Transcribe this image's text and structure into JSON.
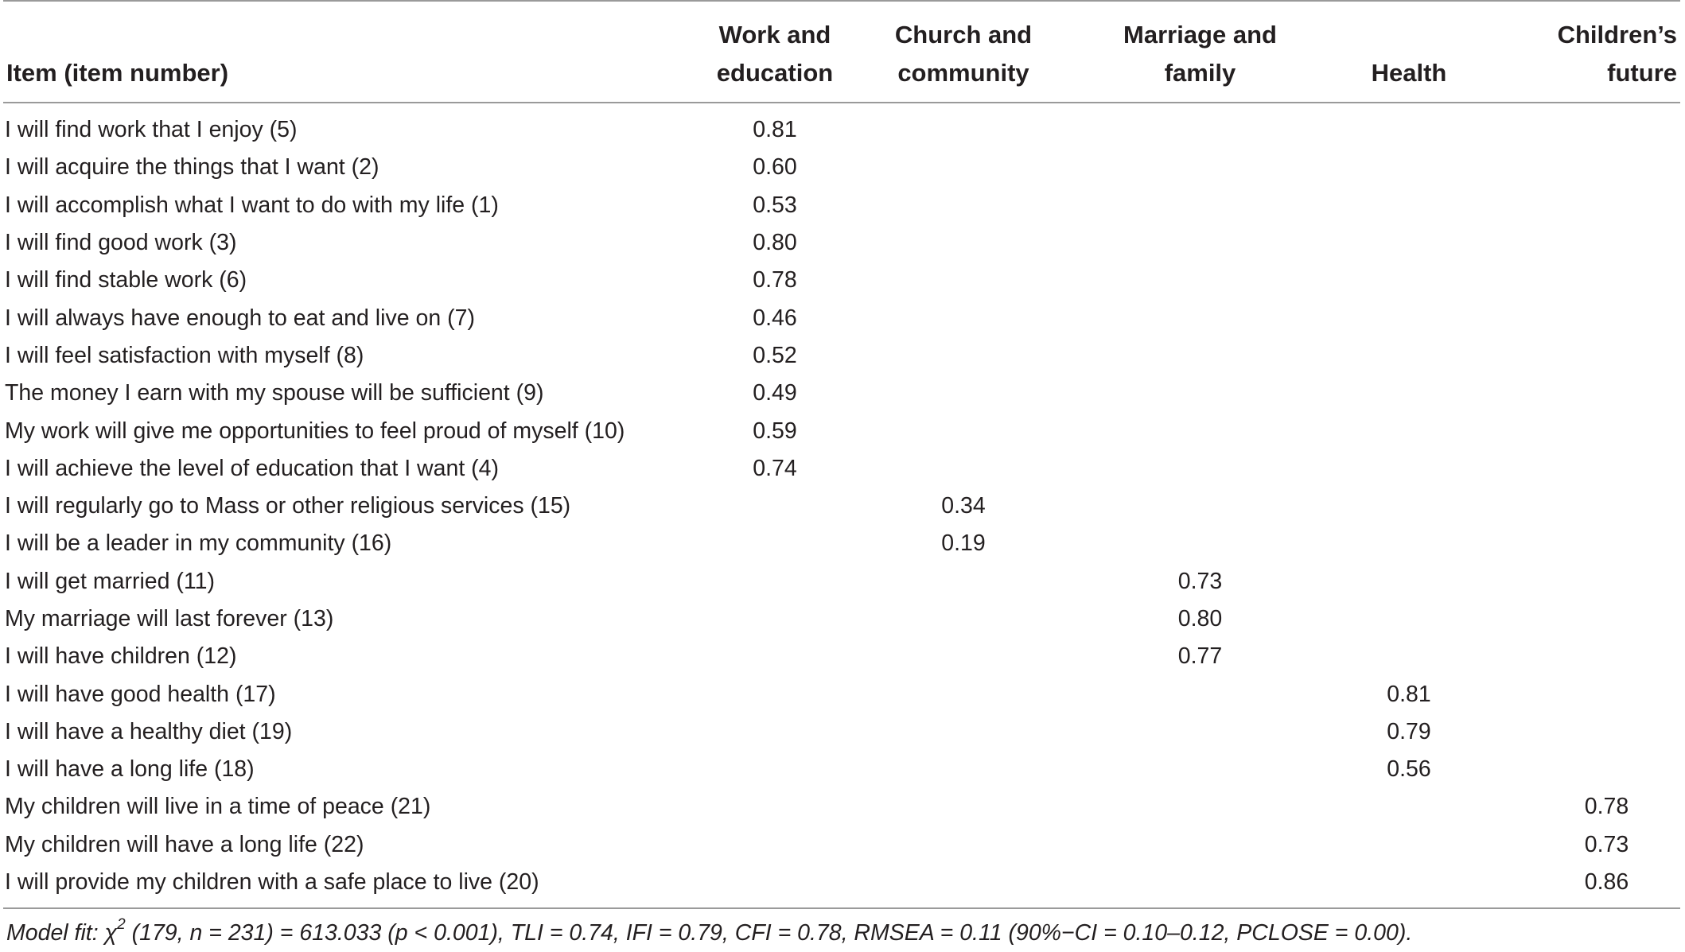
{
  "table": {
    "header": {
      "item": "Item (item number)",
      "columns": [
        {
          "line1": "Work and",
          "line2": "education"
        },
        {
          "line1": "Church and",
          "line2": "community"
        },
        {
          "line1": "Marriage and",
          "line2": "family"
        },
        {
          "line1": "",
          "line2": "Health"
        },
        {
          "line1": "Children’s",
          "line2": "future"
        }
      ]
    },
    "rows": [
      {
        "item": "I will find work that I enjoy (5)",
        "values": [
          "0.81",
          "",
          "",
          "",
          ""
        ]
      },
      {
        "item": "I will acquire the things that I want (2)",
        "values": [
          "0.60",
          "",
          "",
          "",
          ""
        ]
      },
      {
        "item": "I will accomplish what I want to do with my life (1)",
        "values": [
          "0.53",
          "",
          "",
          "",
          ""
        ]
      },
      {
        "item": "I will find good work (3)",
        "values": [
          "0.80",
          "",
          "",
          "",
          ""
        ]
      },
      {
        "item": "I will find stable work (6)",
        "values": [
          "0.78",
          "",
          "",
          "",
          ""
        ]
      },
      {
        "item": "I will always have enough to eat and live on (7)",
        "values": [
          "0.46",
          "",
          "",
          "",
          ""
        ]
      },
      {
        "item": "I will feel satisfaction with myself (8)",
        "values": [
          "0.52",
          "",
          "",
          "",
          ""
        ]
      },
      {
        "item": "The money I earn with my spouse will be sufficient (9)",
        "values": [
          "0.49",
          "",
          "",
          "",
          ""
        ]
      },
      {
        "item": "My work will give me opportunities to feel proud of myself (10)",
        "values": [
          "0.59",
          "",
          "",
          "",
          ""
        ]
      },
      {
        "item": "I will achieve the level of education that I want (4)",
        "values": [
          "0.74",
          "",
          "",
          "",
          ""
        ]
      },
      {
        "item": "I will regularly go to Mass or other religious services (15)",
        "values": [
          "",
          "0.34",
          "",
          "",
          ""
        ]
      },
      {
        "item": "I will be a leader in my community (16)",
        "values": [
          "",
          "0.19",
          "",
          "",
          ""
        ]
      },
      {
        "item": "I will get married (11)",
        "values": [
          "",
          "",
          "0.73",
          "",
          ""
        ]
      },
      {
        "item": "My marriage will last forever (13)",
        "values": [
          "",
          "",
          "0.80",
          "",
          ""
        ]
      },
      {
        "item": "I will have children (12)",
        "values": [
          "",
          "",
          "0.77",
          "",
          ""
        ]
      },
      {
        "item": "I will have good health (17)",
        "values": [
          "",
          "",
          "",
          "0.81",
          ""
        ]
      },
      {
        "item": "I will have a healthy diet (19)",
        "values": [
          "",
          "",
          "",
          "0.79",
          ""
        ]
      },
      {
        "item": "I will have a long life (18)",
        "values": [
          "",
          "",
          "",
          "0.56",
          ""
        ]
      },
      {
        "item": "My children will live in a time of peace (21)",
        "values": [
          "",
          "",
          "",
          "",
          "0.78"
        ]
      },
      {
        "item": "My children will have a long life (22)",
        "values": [
          "",
          "",
          "",
          "",
          "0.73"
        ]
      },
      {
        "item": "I will provide my children with a safe place to live (20)",
        "values": [
          "",
          "",
          "",
          "",
          "0.86"
        ]
      }
    ]
  },
  "footnote": {
    "prefix": "Model fit: χ",
    "superscript": "2",
    "rest": " (179, n = 231) = 613.033 (p < 0.001), TLI = 0.74, IFI = 0.79, CFI = 0.78, RMSEA = 0.11 (90%−CI = 0.10–0.12, PCLOSE = 0.00)."
  }
}
